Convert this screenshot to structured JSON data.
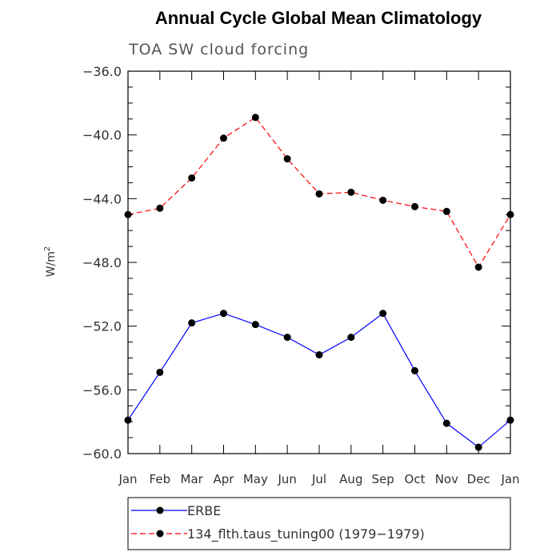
{
  "chart_data": {
    "type": "line",
    "title": "Annual Cycle Global Mean Climatology",
    "subtitle": "TOA SW cloud forcing",
    "xlabel": "",
    "ylabel": "W/m",
    "ylabel_superscript": "2",
    "categories": [
      "Jan",
      "Feb",
      "Mar",
      "Apr",
      "May",
      "Jun",
      "Jul",
      "Aug",
      "Sep",
      "Oct",
      "Nov",
      "Dec",
      "Jan"
    ],
    "ylim": [
      -60.0,
      -36.0
    ],
    "yticks": [
      -36.0,
      -40.0,
      -44.0,
      -48.0,
      -52.0,
      -56.0,
      -60.0
    ],
    "ytick_labels": [
      "−36.0",
      "−40.0",
      "−44.0",
      "−48.0",
      "−52.0",
      "−56.0",
      "−60.0"
    ],
    "yminor_step": 1.0,
    "grid": false,
    "legend_placement": "bottom",
    "series": [
      {
        "name": "ERBE",
        "color": "#0000ff",
        "dash": "solid",
        "values": [
          -57.9,
          -54.9,
          -51.8,
          -51.2,
          -51.9,
          -52.7,
          -53.8,
          -52.7,
          -51.2,
          -54.8,
          -58.1,
          -59.6,
          -57.9
        ]
      },
      {
        "name": "134_flth.taus_tuning00 (1979−1979)",
        "color": "#ff0000",
        "dash": "dashed",
        "values": [
          -45.0,
          -44.6,
          -42.7,
          -40.2,
          -38.9,
          -41.5,
          -43.7,
          -43.6,
          -44.1,
          -44.5,
          -44.8,
          -48.3,
          -45.0
        ]
      }
    ]
  }
}
